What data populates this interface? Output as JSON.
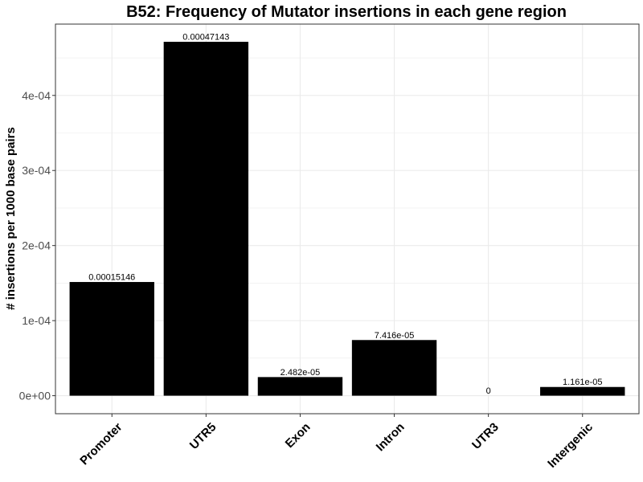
{
  "chart_data": {
    "type": "bar",
    "title": "B52: Frequency of Mutator insertions in each gene region",
    "xlabel": "",
    "ylabel": "# insertions per 1000 base pairs",
    "categories": [
      "Promoter",
      "UTR5",
      "Exon",
      "Intron",
      "UTR3",
      "Intergenic"
    ],
    "values": [
      0.00015146,
      0.00047143,
      2.482e-05,
      7.416e-05,
      0,
      1.161e-05
    ],
    "value_labels": [
      "0.00015146",
      "0.00047143",
      "2.482e-05",
      "7.416e-05",
      "0",
      "1.161e-05"
    ],
    "ylim": [
      -2.4e-05,
      0.000495
    ],
    "y_ticks": [
      0,
      0.0001,
      0.0002,
      0.0003,
      0.0004
    ],
    "y_tick_labels": [
      "0e+00",
      "1e-04",
      "2e-04",
      "3e-04",
      "4e-04"
    ],
    "grid": true,
    "bar_color": "#000000",
    "grid_color": "#ebebeb",
    "panel_border_color": "#333333"
  }
}
